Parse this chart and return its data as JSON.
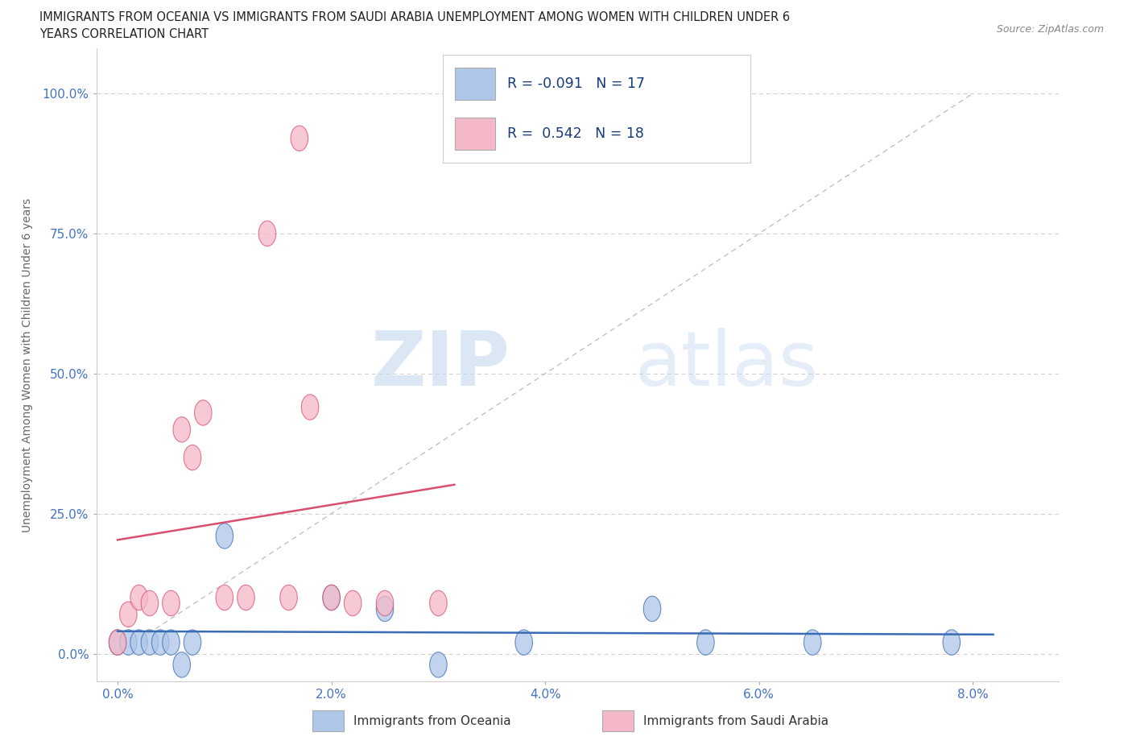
{
  "title_line1": "IMMIGRANTS FROM OCEANIA VS IMMIGRANTS FROM SAUDI ARABIA UNEMPLOYMENT AMONG WOMEN WITH CHILDREN UNDER 6",
  "title_line2": "YEARS CORRELATION CHART",
  "source": "Source: ZipAtlas.com",
  "xlabel_ticks": [
    "0.0%",
    "2.0%",
    "4.0%",
    "6.0%",
    "8.0%"
  ],
  "xlabel_vals": [
    0.0,
    0.02,
    0.04,
    0.06,
    0.08
  ],
  "ylabel_ticks": [
    "0.0%",
    "25.0%",
    "50.0%",
    "75.0%",
    "100.0%"
  ],
  "ylabel_vals": [
    0.0,
    0.25,
    0.5,
    0.75,
    1.0
  ],
  "ylabel_label": "Unemployment Among Women with Children Under 6 years",
  "xlim": [
    -0.002,
    0.088
  ],
  "ylim": [
    -0.05,
    1.08
  ],
  "legend_label1": "Immigrants from Oceania",
  "legend_label2": "Immigrants from Saudi Arabia",
  "R1": -0.091,
  "N1": 17,
  "R2": 0.542,
  "N2": 18,
  "color1": "#aec6e8",
  "color2": "#f5b8c8",
  "line_color1": "#3a6bb5",
  "line_color2": "#d94f70",
  "watermark_zip": "ZIP",
  "watermark_atlas": "atlas",
  "oceania_x": [
    0.0,
    0.001,
    0.002,
    0.003,
    0.004,
    0.005,
    0.006,
    0.007,
    0.01,
    0.02,
    0.025,
    0.03,
    0.038,
    0.05,
    0.055,
    0.065,
    0.078
  ],
  "oceania_y": [
    0.02,
    0.02,
    0.02,
    0.02,
    0.02,
    0.02,
    -0.02,
    0.02,
    0.21,
    0.1,
    0.08,
    -0.02,
    0.02,
    0.08,
    0.02,
    0.02,
    0.02
  ],
  "saudi_x": [
    0.0,
    0.001,
    0.002,
    0.003,
    0.005,
    0.006,
    0.007,
    0.008,
    0.01,
    0.012,
    0.014,
    0.016,
    0.017,
    0.018,
    0.02,
    0.022,
    0.025,
    0.03
  ],
  "saudi_y": [
    0.02,
    0.07,
    0.1,
    0.09,
    0.09,
    0.4,
    0.35,
    0.43,
    0.1,
    0.1,
    0.75,
    0.1,
    0.92,
    0.44,
    0.1,
    0.09,
    0.09,
    0.09
  ]
}
